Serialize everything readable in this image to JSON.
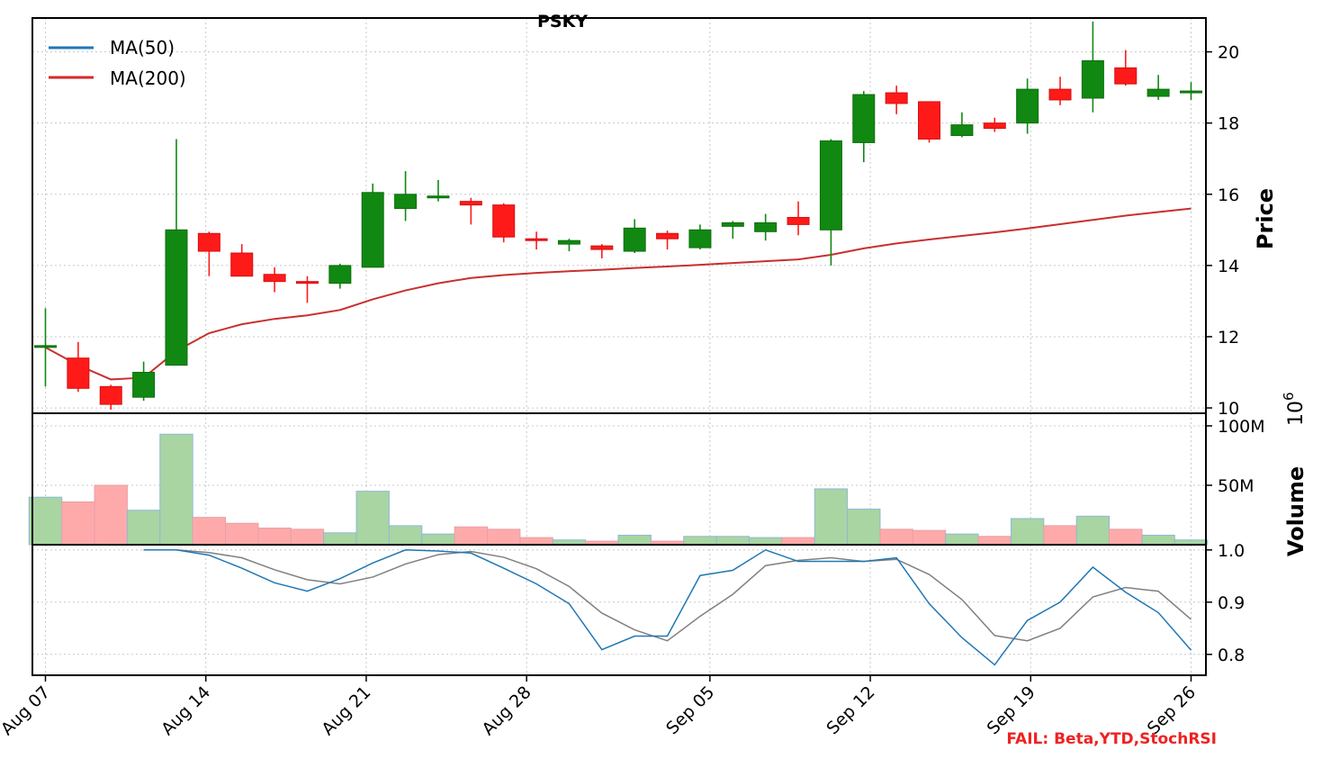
{
  "chart_data": {
    "type": "candlestick",
    "title": "PSKY",
    "dates": [
      "Aug 07",
      "Aug 08",
      "Aug 11",
      "Aug 12",
      "Aug 13",
      "Aug 14",
      "Aug 15",
      "Aug 18",
      "Aug 19",
      "Aug 20",
      "Aug 21",
      "Aug 22",
      "Aug 25",
      "Aug 26",
      "Aug 27",
      "Aug 28",
      "Aug 29",
      "Sep 02",
      "Sep 03",
      "Sep 04",
      "Sep 05",
      "Sep 08",
      "Sep 09",
      "Sep 10",
      "Sep 11",
      "Sep 12",
      "Sep 15",
      "Sep 16",
      "Sep 17",
      "Sep 18",
      "Sep 19",
      "Sep 22",
      "Sep 23",
      "Sep 24",
      "Sep 25",
      "Sep 26"
    ],
    "day_index": [
      0,
      1,
      4,
      5,
      6,
      7,
      8,
      11,
      12,
      13,
      14,
      15,
      18,
      19,
      20,
      21,
      22,
      26,
      27,
      28,
      29,
      32,
      33,
      34,
      35,
      36,
      39,
      40,
      41,
      42,
      43,
      46,
      47,
      48,
      49,
      50
    ],
    "x_ticks": {
      "labels": [
        "Aug 07",
        "Aug 14",
        "Aug 21",
        "Aug 28",
        "Sep 05",
        "Sep 12",
        "Sep 19",
        "Sep 26"
      ],
      "day_index": [
        0,
        7,
        14,
        21,
        29,
        36,
        43,
        50
      ]
    },
    "ohlc": {
      "open": [
        11.7,
        11.4,
        10.6,
        10.3,
        11.2,
        14.9,
        14.35,
        13.75,
        13.55,
        13.5,
        13.95,
        15.6,
        15.9,
        15.8,
        15.7,
        14.75,
        14.6,
        14.55,
        14.4,
        14.9,
        14.5,
        15.1,
        14.95,
        15.35,
        15.0,
        17.45,
        18.85,
        18.6,
        17.65,
        18.0,
        18.0,
        18.95,
        18.7,
        19.55,
        18.75,
        18.9
      ],
      "high": [
        12.8,
        11.85,
        10.65,
        11.3,
        17.55,
        14.95,
        14.6,
        13.95,
        13.7,
        14.05,
        16.3,
        16.65,
        16.4,
        15.9,
        15.75,
        14.95,
        14.75,
        14.6,
        15.3,
        14.98,
        15.15,
        15.25,
        15.45,
        15.8,
        17.55,
        18.9,
        19.05,
        18.6,
        18.3,
        18.15,
        19.25,
        19.3,
        20.85,
        20.05,
        19.35,
        19.15
      ],
      "low": [
        10.6,
        10.45,
        9.95,
        10.2,
        11.2,
        13.7,
        13.7,
        13.25,
        12.95,
        13.35,
        13.95,
        15.25,
        15.8,
        15.15,
        14.65,
        14.45,
        14.4,
        14.2,
        14.35,
        14.45,
        14.45,
        14.75,
        14.7,
        14.85,
        14.0,
        16.9,
        18.25,
        17.45,
        17.6,
        17.75,
        17.7,
        18.5,
        18.3,
        19.05,
        18.65,
        18.65
      ],
      "close": [
        11.75,
        10.55,
        10.1,
        11.0,
        15.0,
        14.4,
        13.7,
        13.55,
        13.5,
        14.0,
        16.05,
        16.0,
        15.95,
        15.7,
        14.8,
        14.7,
        14.7,
        14.45,
        15.05,
        14.75,
        15.0,
        15.2,
        15.2,
        15.15,
        17.5,
        18.8,
        18.55,
        17.55,
        17.95,
        17.85,
        18.95,
        18.65,
        19.75,
        19.1,
        18.95,
        18.9
      ]
    },
    "ma200": [
      11.7,
      11.2,
      10.8,
      10.85,
      11.6,
      12.1,
      12.35,
      12.5,
      12.6,
      12.75,
      13.05,
      13.3,
      13.5,
      13.65,
      13.73,
      13.79,
      13.84,
      13.88,
      13.93,
      13.97,
      14.02,
      14.07,
      14.12,
      14.17,
      14.3,
      14.48,
      14.62,
      14.73,
      14.83,
      14.93,
      15.04,
      15.16,
      15.28,
      15.4,
      15.5,
      15.6
    ],
    "volume": [
      40,
      36,
      50,
      29,
      93,
      23,
      18,
      14,
      13,
      10,
      45,
      16,
      9,
      15,
      13,
      6,
      4,
      3,
      8,
      3,
      7,
      7,
      6,
      6,
      47,
      30,
      13,
      12,
      9,
      7,
      22,
      16,
      24,
      13,
      8,
      4
    ],
    "stoch_rsi": {
      "k": [
        null,
        null,
        null,
        1.0,
        1.0,
        0.99,
        0.965,
        0.937,
        0.921,
        0.945,
        0.975,
        1.0,
        0.998,
        0.994,
        0.965,
        0.935,
        0.897,
        0.809,
        0.835,
        0.835,
        0.951,
        0.961,
        1.0,
        0.978,
        0.978,
        0.978,
        0.985,
        0.897,
        0.832,
        0.78,
        0.865,
        0.9,
        0.967,
        0.919,
        0.88,
        0.808
      ],
      "d": [
        null,
        null,
        null,
        1.0,
        1.0,
        0.995,
        0.985,
        0.962,
        0.943,
        0.935,
        0.948,
        0.973,
        0.991,
        0.997,
        0.986,
        0.964,
        0.93,
        0.879,
        0.847,
        0.826,
        0.873,
        0.915,
        0.97,
        0.98,
        0.985,
        0.978,
        0.982,
        0.953,
        0.905,
        0.836,
        0.826,
        0.85,
        0.91,
        0.928,
        0.921,
        0.867
      ]
    },
    "price_axis": {
      "label": "Price",
      "ylim": [
        9.85,
        20.95
      ],
      "ticks": [
        10,
        12,
        14,
        16,
        18,
        20
      ]
    },
    "volume_axis": {
      "label": "Volume",
      "exponent_label": "10",
      "exponent": "6",
      "ylim": [
        0,
        100
      ],
      "ticks": [
        {
          "value": 50,
          "label": "50M"
        },
        {
          "value": 100,
          "label": "100M"
        }
      ]
    },
    "stoch_axis": {
      "ylim": [
        0.76,
        1.01
      ],
      "ticks": [
        0.8,
        0.9,
        1.0
      ],
      "tick_labels": [
        "0.8",
        "0.9",
        "1.0"
      ]
    },
    "legend": {
      "placement": "top-left",
      "entries": [
        {
          "name": "MA(50)",
          "color": "#1f77b4"
        },
        {
          "name": "MA(200)",
          "color": "#d62728"
        }
      ]
    },
    "colors": {
      "up": "#118811",
      "down": "#ff1a1a",
      "up_volume": "#a8d5a2",
      "down_volume": "#ffaaaa",
      "ma200": "#c8302e",
      "stoch_k": "#1f77b4",
      "stoch_d": "#808080"
    },
    "grid": true
  },
  "annotation": {
    "text": "FAIL: Beta,YTD,StochRSI",
    "color": "#ee2222"
  }
}
